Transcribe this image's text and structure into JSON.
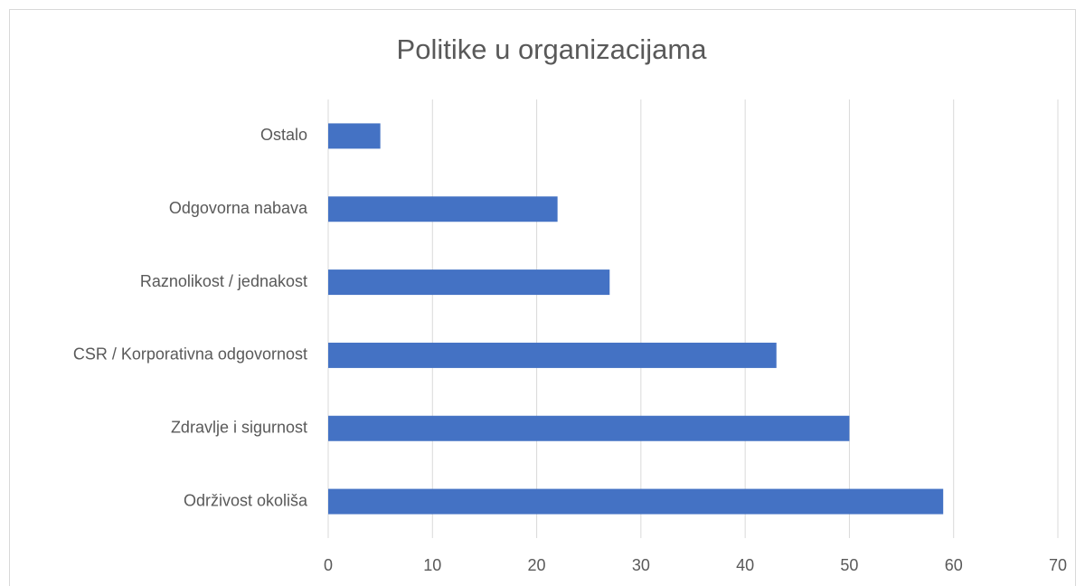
{
  "chart_data": {
    "type": "bar",
    "orientation": "horizontal",
    "title": "Politike u organizacijama",
    "categories": [
      "Ostalo",
      "Odgovorna nabava",
      "Raznolikost / jednakost",
      "CSR / Korporativna odgovornost",
      "Zdravlje i sigurnost",
      "Održivost okoliša"
    ],
    "values": [
      5,
      22,
      27,
      43,
      50,
      59
    ],
    "color": "#4472c4",
    "xlim": [
      0,
      70
    ],
    "xticks": [
      0,
      10,
      20,
      30,
      40,
      50,
      60,
      70
    ],
    "grid": true
  }
}
